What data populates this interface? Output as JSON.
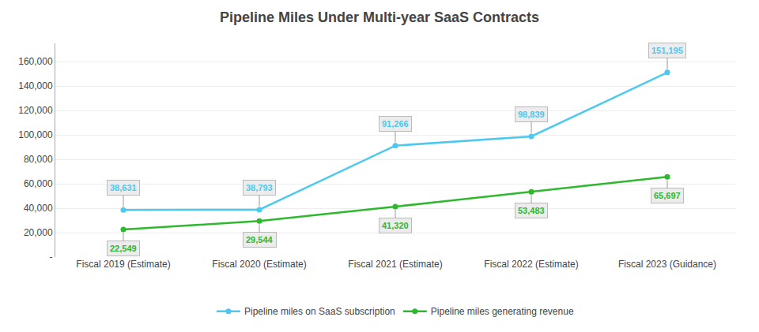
{
  "chart_data": {
    "type": "line",
    "title": "Pipeline Miles Under Multi-year SaaS Contracts",
    "categories": [
      "Fiscal 2019 (Estimate)",
      "Fiscal 2020 (Estimate)",
      "Fiscal 2021 (Estimate)",
      "Fiscal 2022 (Estimate)",
      "Fiscal 2023 (Guidance)"
    ],
    "series": [
      {
        "name": "Pipeline miles on SaaS subscription",
        "color": "#4DC8F0",
        "values": [
          38631,
          38793,
          91266,
          98839,
          151195
        ],
        "value_labels": [
          "38,631",
          "38,793",
          "91,266",
          "98,839",
          "151,195"
        ]
      },
      {
        "name": "Pipeline miles generating revenue",
        "color": "#2EB82E",
        "values": [
          22549,
          29544,
          41320,
          53483,
          65697
        ],
        "value_labels": [
          "22,549",
          "29,544",
          "41,320",
          "53,483",
          "65,697"
        ]
      }
    ],
    "ylim": [
      0,
      175000
    ],
    "yticks": [
      {
        "value": 0,
        "label": "-"
      },
      {
        "value": 20000,
        "label": "20,000"
      },
      {
        "value": 40000,
        "label": "40,000"
      },
      {
        "value": 60000,
        "label": "60,000"
      },
      {
        "value": 80000,
        "label": "80,000"
      },
      {
        "value": 100000,
        "label": "100,000"
      },
      {
        "value": 120000,
        "label": "120,000"
      },
      {
        "value": 140000,
        "label": "140,000"
      },
      {
        "value": 160000,
        "label": "160,000"
      }
    ],
    "grid": true,
    "data_labels": true,
    "legend": "bottom",
    "marker": "circle"
  }
}
